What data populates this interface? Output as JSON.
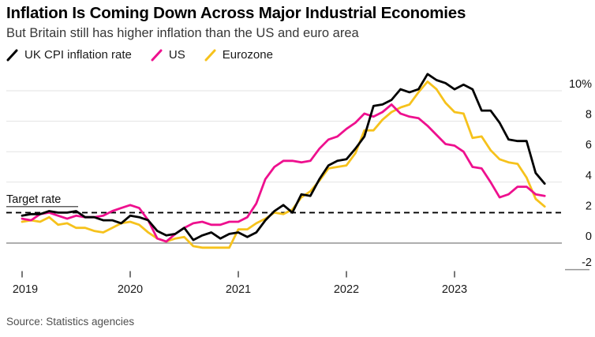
{
  "header": {
    "title": "Inflation Is Coming Down Across Major Industrial Economies",
    "subtitle": "But Britain still has higher inflation than the US and euro area"
  },
  "legend": {
    "items": [
      {
        "id": "uk",
        "label": "UK CPI inflation rate",
        "color": "#000000"
      },
      {
        "id": "us",
        "label": "US",
        "color": "#ee108e"
      },
      {
        "id": "eurozone",
        "label": "Eurozone",
        "color": "#f6c21c"
      }
    ]
  },
  "source": "Source: Statistics agencies",
  "chart_data": {
    "type": "line",
    "title": "Inflation Is Coming Down Across Major Industrial Economies",
    "subtitle": "But Britain still has higher inflation than the US and euro area",
    "x_unit": "month",
    "x_start": "2019-01",
    "x_end": "2023-11",
    "x_axis": {
      "ticks": [
        "2019",
        "2020",
        "2021",
        "2022",
        "2023"
      ]
    },
    "y_axis": {
      "unit": "%",
      "labels": [
        "10%",
        "8",
        "6",
        "4",
        "2",
        "0",
        "-2"
      ],
      "range": [
        -2,
        11.5
      ],
      "gridlines": [
        10,
        8,
        6,
        4
      ],
      "zero_line": 0,
      "grid": true,
      "side": "right"
    },
    "annotation": {
      "label": "Target rate",
      "value": 2,
      "style": "dashed"
    },
    "legend_position": "top-left",
    "series": [
      {
        "id": "uk",
        "name": "UK CPI inflation rate",
        "color": "#000000",
        "values": [
          1.8,
          1.9,
          1.9,
          2.1,
          2.0,
          2.0,
          2.1,
          1.7,
          1.7,
          1.5,
          1.5,
          1.3,
          1.8,
          1.7,
          1.5,
          0.8,
          0.5,
          0.6,
          1.0,
          0.2,
          0.5,
          0.7,
          0.3,
          0.6,
          0.7,
          0.4,
          0.7,
          1.5,
          2.1,
          2.5,
          2.0,
          3.2,
          3.1,
          4.2,
          5.1,
          5.4,
          5.5,
          6.2,
          7.0,
          9.0,
          9.1,
          9.4,
          10.1,
          9.9,
          10.1,
          11.1,
          10.7,
          10.5,
          10.1,
          10.4,
          10.1,
          8.7,
          8.7,
          7.9,
          6.8,
          6.7,
          6.7,
          4.6,
          3.9
        ]
      },
      {
        "id": "us",
        "name": "US",
        "color": "#ee108e",
        "values": [
          1.6,
          1.5,
          1.9,
          2.0,
          1.8,
          1.6,
          1.8,
          1.7,
          1.7,
          1.8,
          2.1,
          2.3,
          2.5,
          2.3,
          1.5,
          0.3,
          0.1,
          0.6,
          1.0,
          1.3,
          1.4,
          1.2,
          1.2,
          1.4,
          1.4,
          1.7,
          2.6,
          4.2,
          5.0,
          5.4,
          5.4,
          5.3,
          5.4,
          6.2,
          6.8,
          7.0,
          7.5,
          7.9,
          8.5,
          8.3,
          8.6,
          9.1,
          8.5,
          8.3,
          8.2,
          7.7,
          7.1,
          6.5,
          6.4,
          6.0,
          5.0,
          4.9,
          4.0,
          3.0,
          3.2,
          3.7,
          3.7,
          3.2,
          3.1
        ]
      },
      {
        "id": "eurozone",
        "name": "Eurozone",
        "color": "#f6c21c",
        "values": [
          1.4,
          1.5,
          1.4,
          1.7,
          1.2,
          1.3,
          1.0,
          1.0,
          0.8,
          0.7,
          1.0,
          1.3,
          1.4,
          1.2,
          0.7,
          0.3,
          0.1,
          0.3,
          0.4,
          -0.2,
          -0.3,
          -0.3,
          -0.3,
          -0.3,
          0.9,
          0.9,
          1.3,
          1.6,
          2.0,
          1.9,
          2.2,
          3.0,
          3.4,
          4.1,
          4.9,
          5.0,
          5.1,
          5.9,
          7.4,
          7.4,
          8.1,
          8.6,
          8.9,
          9.1,
          9.9,
          10.6,
          10.1,
          9.2,
          8.6,
          8.5,
          6.9,
          7.0,
          6.1,
          5.5,
          5.3,
          5.2,
          4.3,
          2.9,
          2.4
        ]
      }
    ]
  }
}
